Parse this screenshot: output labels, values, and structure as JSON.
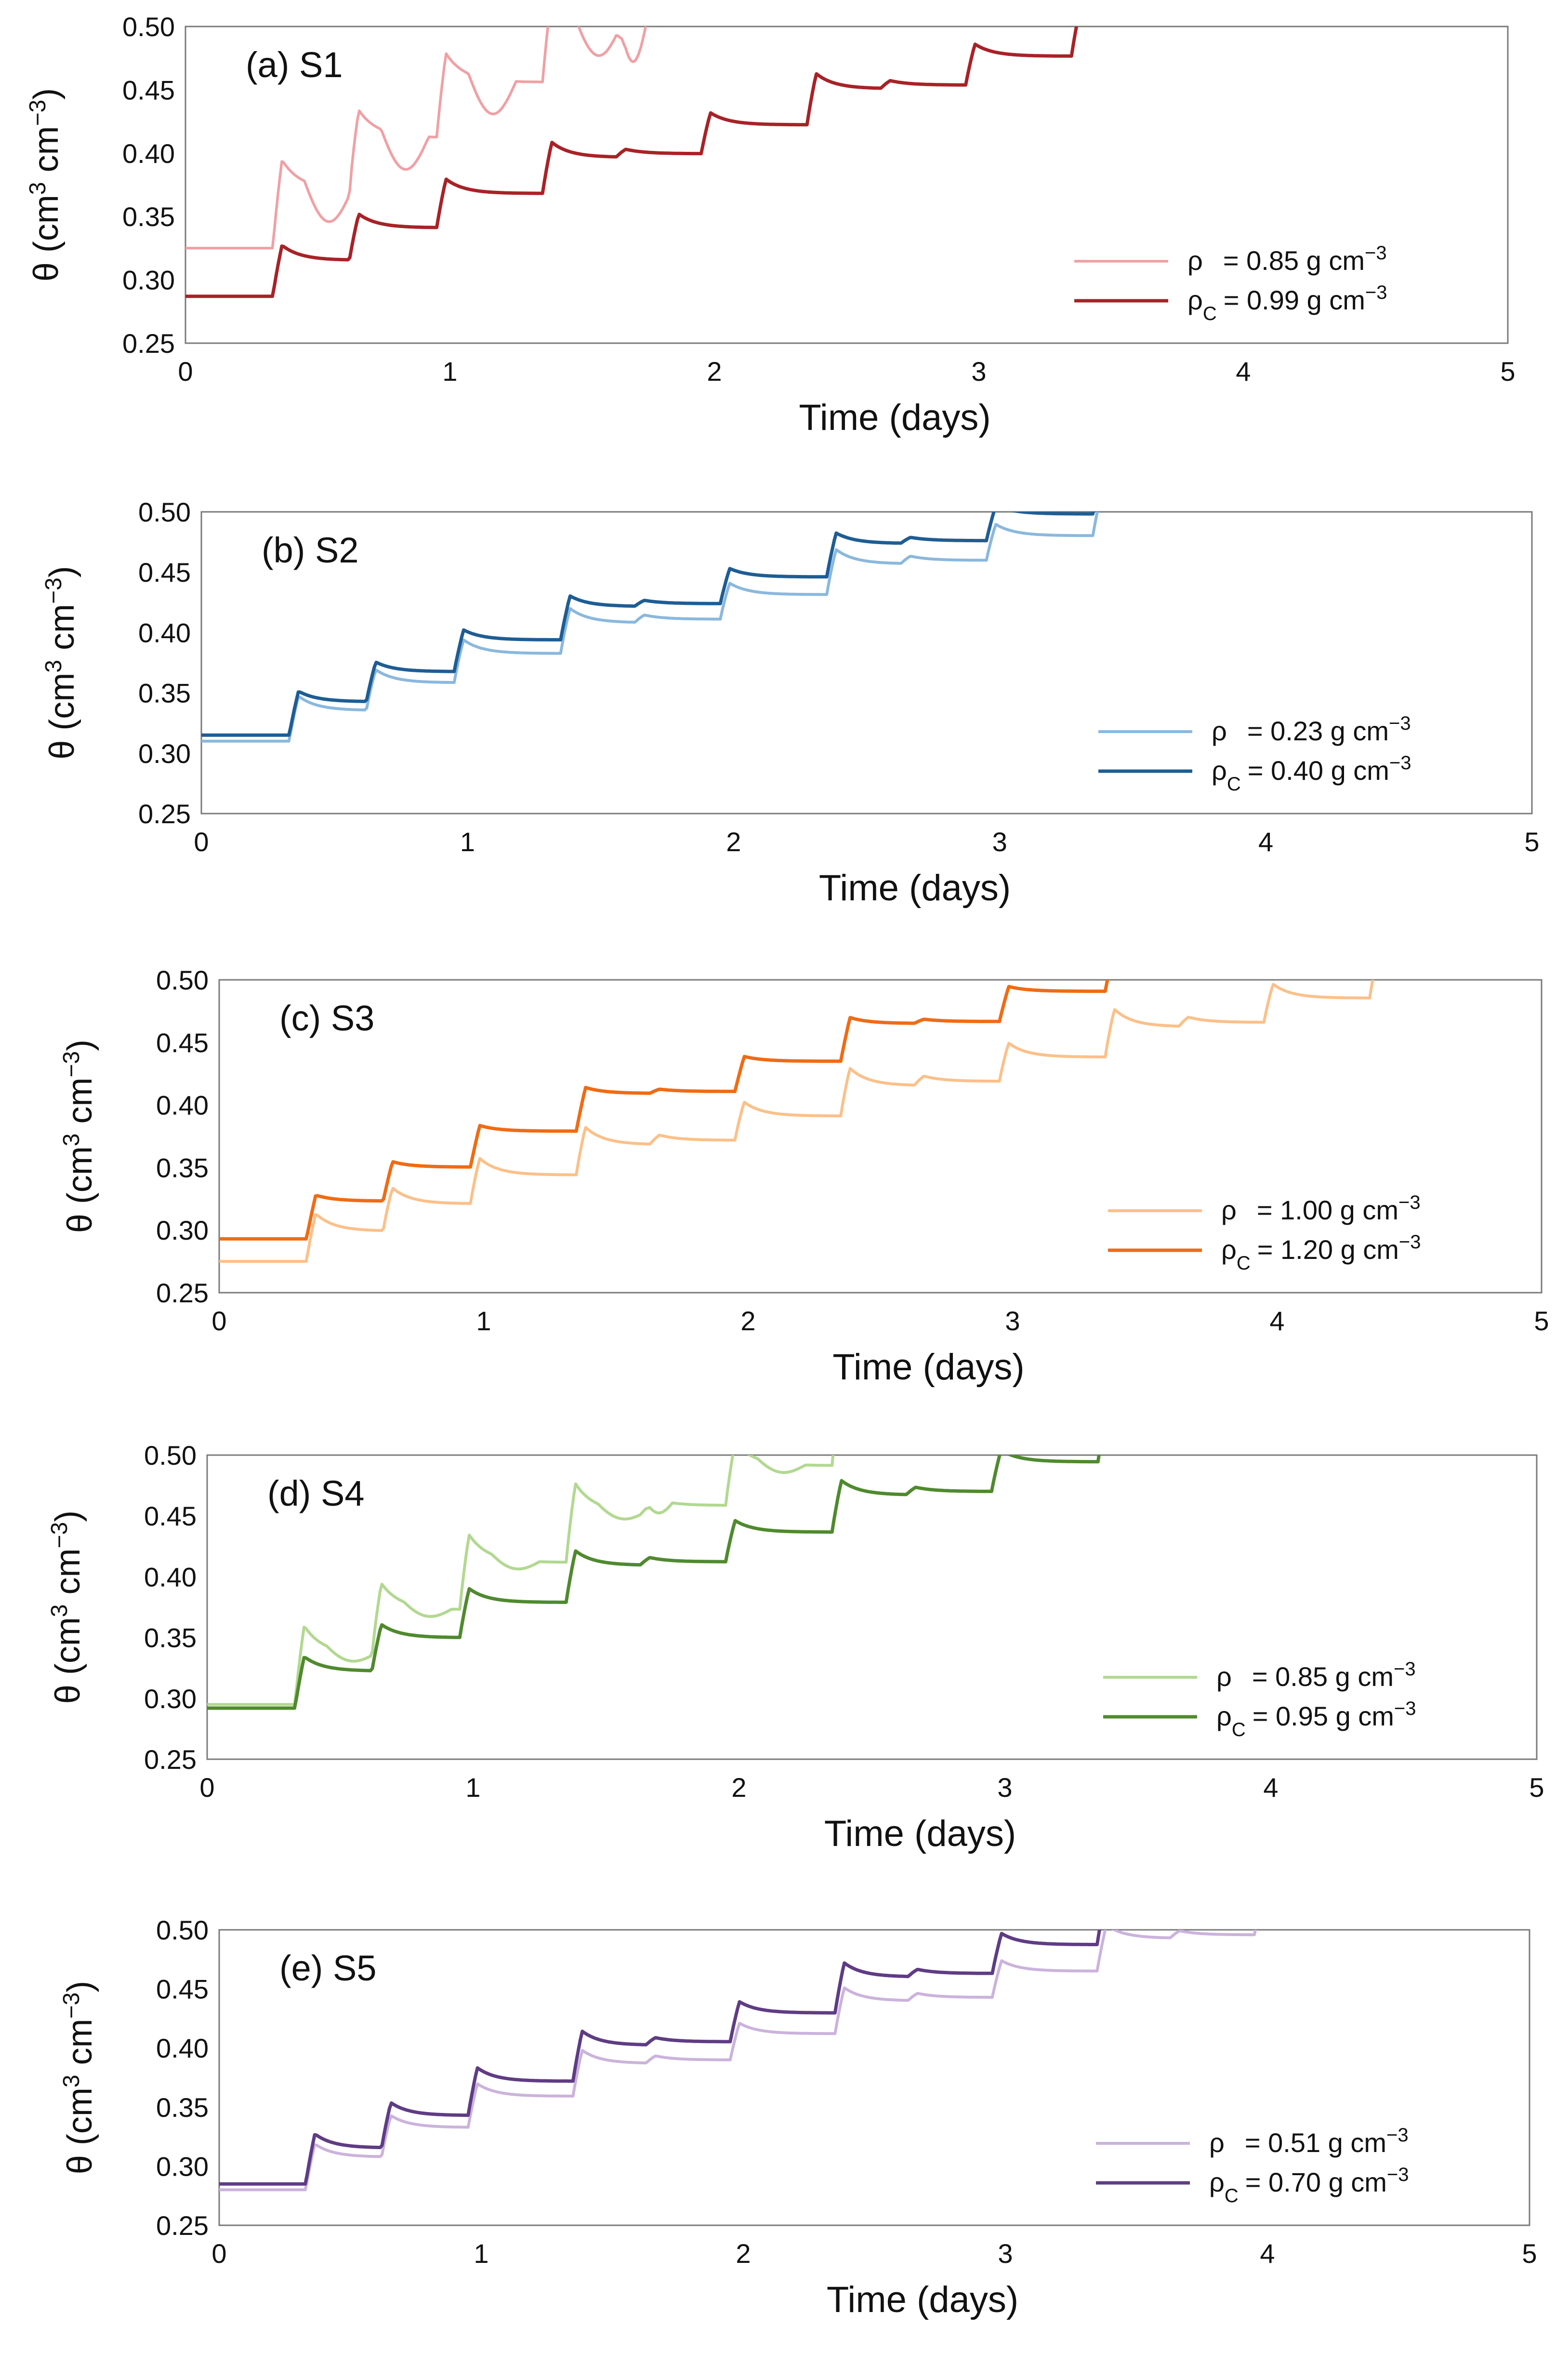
{
  "chart_data": [
    {
      "type": "line",
      "title": "(a) S1",
      "xlabel": "Time (days)",
      "ylabel_parts": [
        "θ (cm",
        "3",
        " cm",
        "−3",
        ")"
      ],
      "xlim": [
        0,
        5
      ],
      "ylim": [
        0.25,
        0.5
      ],
      "xticks": [
        "0",
        "1",
        "2",
        "3",
        "4",
        "5"
      ],
      "yticks": [
        "0.25",
        "0.30",
        "0.35",
        "0.40",
        "0.45",
        "0.50"
      ],
      "legend_position": "bottom-right",
      "series": [
        {
          "sym": "ρ",
          "sub": "",
          "value_text": "= 0.85 g cm",
          "exp": "−3",
          "color": "#f0a0a4",
          "base": 0.325,
          "pulse": 0.06,
          "drift": 0.025,
          "minor": 0.03,
          "noise": 0.045,
          "width": 5.5
        },
        {
          "sym": "ρ",
          "sub": "C",
          "value_text": "= 0.99 g cm",
          "exp": "−3",
          "color": "#a82227",
          "base": 0.287,
          "pulse": 0.03,
          "drift": 0.018,
          "minor": 0.015,
          "noise": 0.0,
          "width": 7
        }
      ]
    },
    {
      "type": "line",
      "title": "(b) S2",
      "xlabel": "Time (days)",
      "ylabel_parts": [
        "θ (cm",
        "3",
        " cm",
        "−3",
        ")"
      ],
      "xlim": [
        0,
        5
      ],
      "ylim": [
        0.25,
        0.5
      ],
      "xticks": [
        "0",
        "1",
        "2",
        "3",
        "4",
        "5"
      ],
      "yticks": [
        "0.25",
        "0.30",
        "0.35",
        "0.40",
        "0.45",
        "0.50"
      ],
      "legend_position": "bottom-right",
      "series": [
        {
          "sym": "ρ",
          "sub": "",
          "value_text": "= 0.23 g cm",
          "exp": "−3",
          "color": "#8ab8de",
          "base": 0.31,
          "pulse": 0.03,
          "drift": 0.015,
          "minor": 0.015,
          "noise": 0.0,
          "width": 6
        },
        {
          "sym": "ρ",
          "sub": "C",
          "value_text": "= 0.40 g cm",
          "exp": "−3",
          "color": "#1e5d94",
          "base": 0.315,
          "pulse": 0.022,
          "drift": 0.02,
          "minor": 0.012,
          "noise": 0.0,
          "width": 7
        }
      ]
    },
    {
      "type": "line",
      "title": "(c) S3",
      "xlabel": "Time (days)",
      "ylabel_parts": [
        "θ (cm",
        "3",
        " cm",
        "−3",
        ")"
      ],
      "xlim": [
        0,
        5
      ],
      "ylim": [
        0.25,
        0.5
      ],
      "xticks": [
        "0",
        "1",
        "2",
        "3",
        "4",
        "5"
      ],
      "yticks": [
        "0.25",
        "0.30",
        "0.35",
        "0.40",
        "0.45",
        "0.50"
      ],
      "legend_position": "bottom-right",
      "series": [
        {
          "sym": "ρ",
          "sub": "",
          "value_text": "= 1.00 g cm",
          "exp": "−3",
          "color": "#fbc089",
          "base": 0.275,
          "pulse": 0.035,
          "drift": 0.012,
          "minor": 0.018,
          "noise": 0.0,
          "width": 6
        },
        {
          "sym": "ρ",
          "sub": "C",
          "value_text": "= 1.20 g cm",
          "exp": "−3",
          "color": "#f06b14",
          "base": 0.293,
          "pulse": 0.012,
          "drift": 0.026,
          "minor": 0.008,
          "noise": 0.0,
          "width": 7
        }
      ]
    },
    {
      "type": "line",
      "title": "(d) S4",
      "xlabel": "Time (days)",
      "ylabel_parts": [
        "θ (cm",
        "3",
        " cm",
        "−3",
        ")"
      ],
      "xlim": [
        0,
        5
      ],
      "ylim": [
        0.25,
        0.5
      ],
      "xticks": [
        "0",
        "1",
        "2",
        "3",
        "4",
        "5"
      ],
      "yticks": [
        "0.25",
        "0.30",
        "0.35",
        "0.40",
        "0.45",
        "0.50"
      ],
      "legend_position": "bottom-right",
      "series": [
        {
          "sym": "ρ",
          "sub": "",
          "value_text": "= 0.85 g cm",
          "exp": "−3",
          "color": "#b2d891",
          "base": 0.295,
          "pulse": 0.06,
          "drift": 0.02,
          "minor": 0.03,
          "noise": 0.012,
          "width": 6
        },
        {
          "sym": "ρ",
          "sub": "C",
          "value_text": "= 0.95 g cm",
          "exp": "−3",
          "color": "#4f8a2e",
          "base": 0.292,
          "pulse": 0.03,
          "drift": 0.02,
          "minor": 0.015,
          "noise": 0.0,
          "width": 7
        }
      ]
    },
    {
      "type": "line",
      "title": "(e) S5",
      "xlabel": "Time (days)",
      "ylabel_parts": [
        "θ (cm",
        "3",
        " cm",
        "−3",
        ")"
      ],
      "xlim": [
        0,
        5
      ],
      "ylim": [
        0.25,
        0.5
      ],
      "xticks": [
        "0",
        "1",
        "2",
        "3",
        "4",
        "5"
      ],
      "yticks": [
        "0.25",
        "0.30",
        "0.35",
        "0.40",
        "0.45",
        "0.50"
      ],
      "legend_position": "bottom-right",
      "series": [
        {
          "sym": "ρ",
          "sub": "",
          "value_text": "= 0.51 g cm",
          "exp": "−3",
          "color": "#cbb3dc",
          "base": 0.28,
          "pulse": 0.028,
          "drift": 0.018,
          "minor": 0.015,
          "noise": 0.0,
          "width": 6
        },
        {
          "sym": "ρ",
          "sub": "C",
          "value_text": "= 0.70 g cm",
          "exp": "−3",
          "color": "#5f3c84",
          "base": 0.285,
          "pulse": 0.03,
          "drift": 0.02,
          "minor": 0.015,
          "noise": 0.0,
          "width": 7
        }
      ]
    }
  ]
}
